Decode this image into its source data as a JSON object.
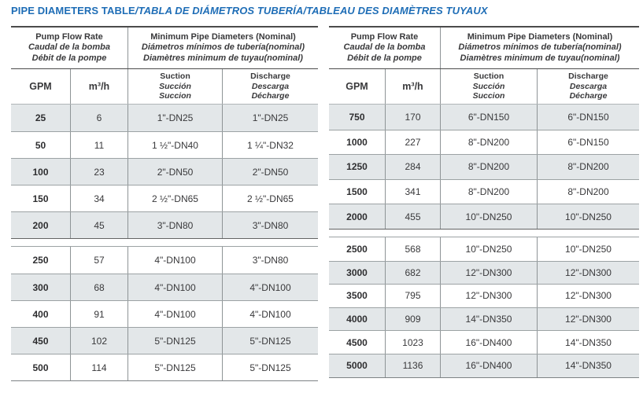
{
  "title": {
    "main": "PIPE DIAMETERS TABLE",
    "rest": "/TABLA DE DIÁMETROS TUBERÍA/TABLEAU DES DIAMÈTRES TUYAUX"
  },
  "header": {
    "flow": {
      "line1": "Pump Flow Rate",
      "line2": "Caudal de la bomba",
      "line3": "Débit de la pompe"
    },
    "diameters": {
      "line1": "Minimum Pipe Diameters (Nominal)",
      "line2": "Diámetros mínimos de tubería(nominal)",
      "line3": "Diamètres minimum de tuyau(nominal)"
    },
    "gpm_label": "GPM",
    "m3h_label": "m³/h",
    "suction": {
      "line1": "Suction",
      "line2": "Succión",
      "line3": "Succion"
    },
    "discharge": {
      "line1": "Discharge",
      "line2": "Descarga",
      "line3": "Décharge"
    }
  },
  "tables": [
    {
      "id": "left",
      "sections": [
        {
          "rows": [
            [
              "25",
              "6",
              "1\"-DN25",
              "1\"-DN25"
            ],
            [
              "50",
              "11",
              "1 ½\"-DN40",
              "1 ¼\"-DN32"
            ],
            [
              "100",
              "23",
              "2\"-DN50",
              "2\"-DN50"
            ],
            [
              "150",
              "34",
              "2 ½\"-DN65",
              "2 ½\"-DN65"
            ],
            [
              "200",
              "45",
              "3\"-DN80",
              "3\"-DN80"
            ]
          ]
        },
        {
          "rows": [
            [
              "250",
              "57",
              "4\"-DN100",
              "3\"-DN80"
            ],
            [
              "300",
              "68",
              "4\"-DN100",
              "4\"-DN100"
            ],
            [
              "400",
              "91",
              "4\"-DN100",
              "4\"-DN100"
            ],
            [
              "450",
              "102",
              "5\"-DN125",
              "5\"-DN125"
            ],
            [
              "500",
              "114",
              "5\"-DN125",
              "5\"-DN125"
            ]
          ]
        }
      ]
    },
    {
      "id": "right",
      "sections": [
        {
          "rows": [
            [
              "750",
              "170",
              "6\"-DN150",
              "6\"-DN150"
            ],
            [
              "1000",
              "227",
              "8\"-DN200",
              "6\"-DN150"
            ],
            [
              "1250",
              "284",
              "8\"-DN200",
              "8\"-DN200"
            ],
            [
              "1500",
              "341",
              "8\"-DN200",
              "8\"-DN200"
            ],
            [
              "2000",
              "455",
              "10\"-DN250",
              "10\"-DN250"
            ]
          ]
        },
        {
          "rows": [
            [
              "2500",
              "568",
              "10\"-DN250",
              "10\"-DN250"
            ],
            [
              "3000",
              "682",
              "12\"-DN300",
              "12\"-DN300"
            ],
            [
              "3500",
              "795",
              "12\"-DN300",
              "12\"-DN300"
            ],
            [
              "4000",
              "909",
              "14\"-DN350",
              "12\"-DN300"
            ],
            [
              "4500",
              "1023",
              "16\"-DN400",
              "14\"-DN350"
            ],
            [
              "5000",
              "1136",
              "16\"-DN400",
              "14\"-DN350"
            ]
          ]
        }
      ]
    }
  ],
  "colors": {
    "title_blue": "#1e6db6",
    "row_shade": "#e3e7e9",
    "dark_rule": "#4b4b4b",
    "light_rule": "#9ca2a4",
    "text": "#39393b"
  }
}
